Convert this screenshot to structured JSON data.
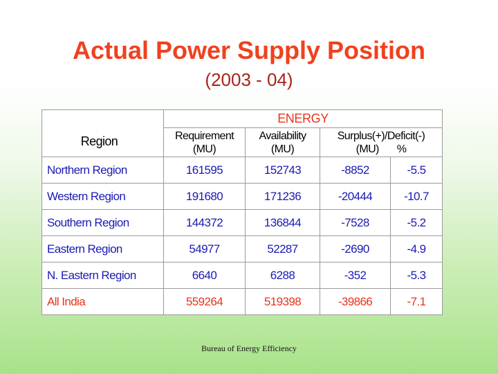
{
  "title": "Actual Power Supply Position",
  "subtitle": "(2003 - 04)",
  "table": {
    "group_header": "ENERGY",
    "region_header": "Region",
    "requirement_header": "Requirement",
    "availability_header": "Availability",
    "surplus_header": "Surplus(+)/Deficit(-)",
    "unit_mu": "(MU)",
    "unit_pct": "%",
    "rows": [
      {
        "region": "Northern Region",
        "requirement": "161595",
        "availability": "152743",
        "surplus_mu": "-8852",
        "surplus_pct": "-5.5"
      },
      {
        "region": "Western Region",
        "requirement": "191680",
        "availability": "171236",
        "surplus_mu": "-20444",
        "surplus_pct": "-10.7"
      },
      {
        "region": "Southern Region",
        "requirement": "144372",
        "availability": "136844",
        "surplus_mu": "-7528",
        "surplus_pct": "-5.2"
      },
      {
        "region": "Eastern Region",
        "requirement": "54977",
        "availability": "52287",
        "surplus_mu": "-2690",
        "surplus_pct": "-4.9"
      },
      {
        "region": "N. Eastern Region",
        "requirement": "6640",
        "availability": "6288",
        "surplus_mu": "-352",
        "surplus_pct": "-5.3"
      },
      {
        "region": "All India",
        "requirement": "559264",
        "availability": "519398",
        "surplus_mu": "-39866",
        "surplus_pct": "-7.1"
      }
    ]
  },
  "footer": "Bureau of Energy Efficiency",
  "colors": {
    "title": "#f0411e",
    "subtitle": "#a8231a",
    "region_text": "#1a1ab4",
    "highlight": "#e8331c"
  }
}
